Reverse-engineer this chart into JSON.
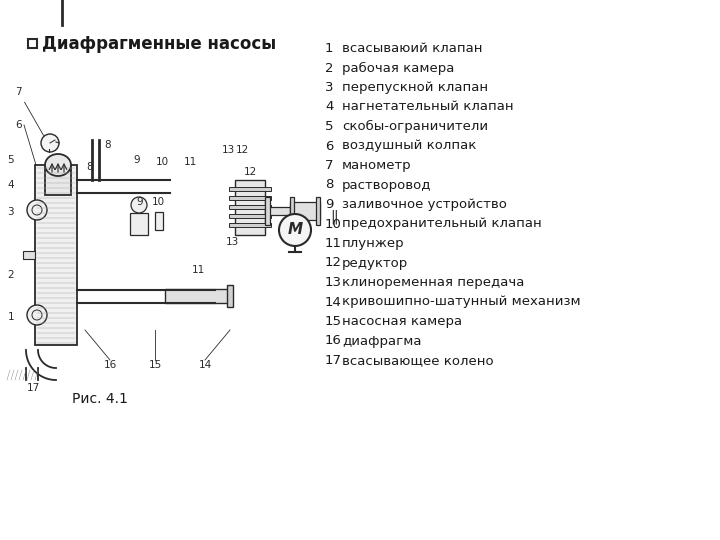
{
  "title": "Диафрагменные насосы",
  "caption": "Рис. 4.1",
  "legend_items": [
    [
      "1",
      "всасываюий клапан"
    ],
    [
      "2",
      "рабочая камера"
    ],
    [
      "3",
      "перепускной клапан"
    ],
    [
      "4",
      "нагнетательный клапан"
    ],
    [
      "5",
      "скобы-ограничители"
    ],
    [
      "6",
      "воздушный колпак"
    ],
    [
      "7",
      "манометр"
    ],
    [
      "8",
      "растворовод"
    ],
    [
      "9",
      "заливочное устройство"
    ],
    [
      "10",
      "предохранительный клапан"
    ],
    [
      "11",
      "плунжер"
    ],
    [
      "12",
      "редуктор"
    ],
    [
      "13",
      "клиноременная передача"
    ],
    [
      "14",
      "кривошипно-шатунный механизм"
    ],
    [
      "15",
      "насосная камера"
    ],
    [
      "16",
      "диафрагма"
    ],
    [
      "17",
      "всасывающее колено"
    ]
  ],
  "bg_color": "#ffffff",
  "text_color": "#1a1a1a",
  "title_fontsize": 12,
  "legend_fontsize": 9.5,
  "caption_fontsize": 10
}
